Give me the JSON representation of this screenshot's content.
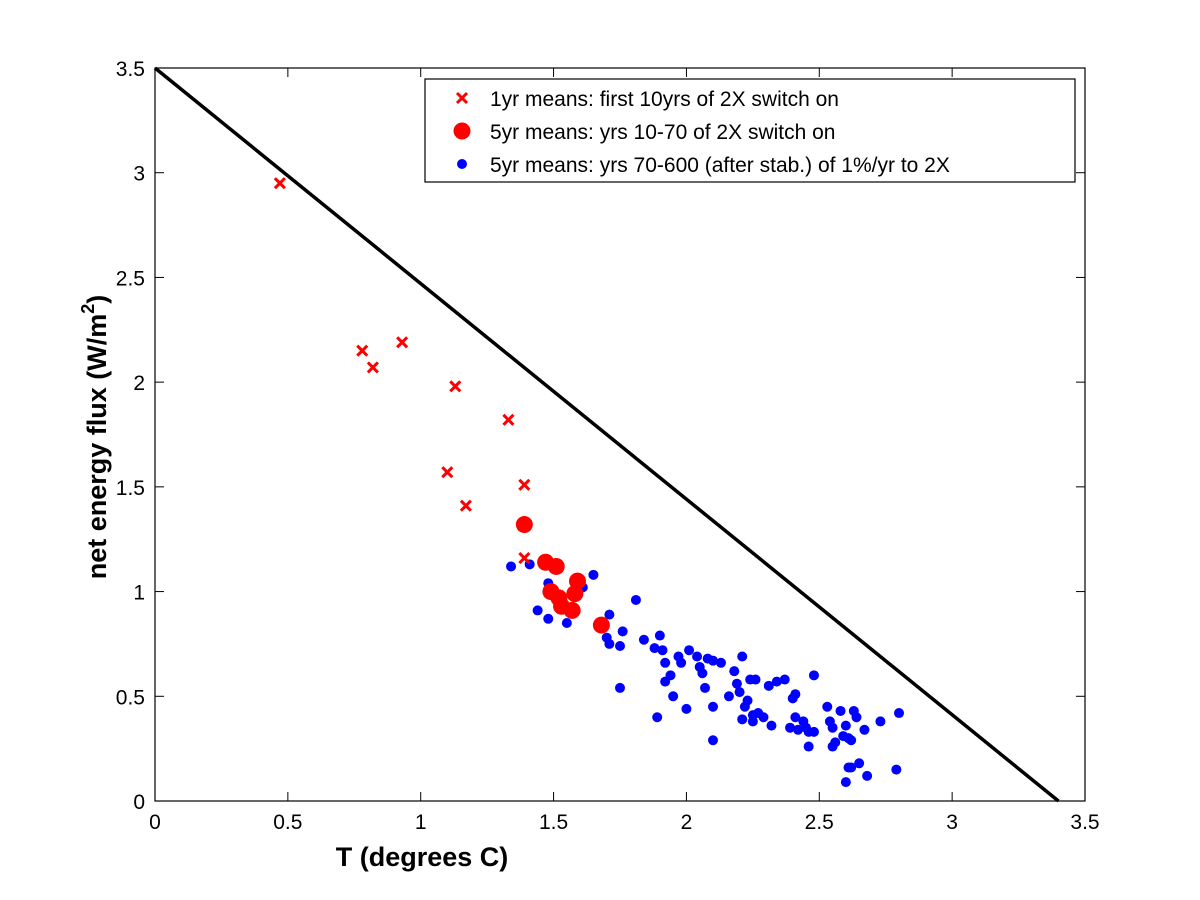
{
  "chart_data": {
    "type": "scatter",
    "title": "",
    "xlabel": "T (degrees C)",
    "ylabel_main": "net energy flux (W/m",
    "ylabel_sup": "2",
    "ylabel_close": ")",
    "xlim": [
      0,
      3.5
    ],
    "ylim": [
      0,
      3.5
    ],
    "xticks": [
      0,
      0.5,
      1,
      1.5,
      2,
      2.5,
      3,
      3.5
    ],
    "xtick_labels": [
      "0",
      "0.5",
      "1",
      "1.5",
      "2",
      "2.5",
      "3",
      "3.5"
    ],
    "yticks": [
      0,
      0.5,
      1,
      1.5,
      2,
      2.5,
      3,
      3.5
    ],
    "ytick_labels": [
      "0",
      "0.5",
      "1",
      "1.5",
      "2",
      "2.5",
      "3",
      "3.5"
    ],
    "grid": false,
    "legend_position": "top-right",
    "reference_line": {
      "x": [
        0,
        3.4
      ],
      "y": [
        3.5,
        0
      ],
      "color": "#000000"
    },
    "series": [
      {
        "name": "1yr means: first 10yrs of 2X switch on",
        "marker": "x",
        "color": "#ff0000",
        "points": [
          [
            0.47,
            2.95
          ],
          [
            0.78,
            2.15
          ],
          [
            0.82,
            2.07
          ],
          [
            0.93,
            2.19
          ],
          [
            1.13,
            1.98
          ],
          [
            1.1,
            1.57
          ],
          [
            1.17,
            1.41
          ],
          [
            1.33,
            1.82
          ],
          [
            1.39,
            1.51
          ],
          [
            1.39,
            1.16
          ]
        ]
      },
      {
        "name": "5yr means: yrs 10-70 of 2X switch on",
        "marker": "circle-large",
        "color": "#ff0000",
        "points": [
          [
            1.39,
            1.32
          ],
          [
            1.47,
            1.14
          ],
          [
            1.51,
            1.12
          ],
          [
            1.49,
            1.0
          ],
          [
            1.52,
            0.97
          ],
          [
            1.53,
            0.93
          ],
          [
            1.59,
            1.05
          ],
          [
            1.58,
            0.99
          ],
          [
            1.57,
            0.91
          ],
          [
            1.68,
            0.84
          ]
        ]
      },
      {
        "name": "5yr means: yrs 70-600 (after stab.) of 1%/yr to 2X",
        "marker": "circle-small",
        "color": "#0000ff",
        "points": [
          [
            1.34,
            1.12
          ],
          [
            1.41,
            1.13
          ],
          [
            1.48,
            1.04
          ],
          [
            1.48,
            0.99
          ],
          [
            1.44,
            0.91
          ],
          [
            1.48,
            0.87
          ],
          [
            1.53,
            0.95
          ],
          [
            1.55,
            0.85
          ],
          [
            1.56,
            0.92
          ],
          [
            1.61,
            1.02
          ],
          [
            1.65,
            1.08
          ],
          [
            1.71,
            0.89
          ],
          [
            1.7,
            0.78
          ],
          [
            1.71,
            0.75
          ],
          [
            1.75,
            0.74
          ],
          [
            1.76,
            0.81
          ],
          [
            1.75,
            0.54
          ],
          [
            1.81,
            0.96
          ],
          [
            1.84,
            0.77
          ],
          [
            1.88,
            0.73
          ],
          [
            1.9,
            0.79
          ],
          [
            1.91,
            0.72
          ],
          [
            1.92,
            0.66
          ],
          [
            1.92,
            0.57
          ],
          [
            1.94,
            0.6
          ],
          [
            1.95,
            0.5
          ],
          [
            1.89,
            0.4
          ],
          [
            1.97,
            0.69
          ],
          [
            1.98,
            0.66
          ],
          [
            2.0,
            0.44
          ],
          [
            2.01,
            0.72
          ],
          [
            2.04,
            0.69
          ],
          [
            2.05,
            0.64
          ],
          [
            2.06,
            0.61
          ],
          [
            2.08,
            0.68
          ],
          [
            2.1,
            0.67
          ],
          [
            2.1,
            0.45
          ],
          [
            2.1,
            0.29
          ],
          [
            2.13,
            0.66
          ],
          [
            2.07,
            0.54
          ],
          [
            2.16,
            0.5
          ],
          [
            2.18,
            0.62
          ],
          [
            2.19,
            0.56
          ],
          [
            2.2,
            0.52
          ],
          [
            2.21,
            0.69
          ],
          [
            2.21,
            0.39
          ],
          [
            2.23,
            0.48
          ],
          [
            2.24,
            0.58
          ],
          [
            2.25,
            0.38
          ],
          [
            2.26,
            0.58
          ],
          [
            2.27,
            0.42
          ],
          [
            2.29,
            0.4
          ],
          [
            2.31,
            0.55
          ],
          [
            2.32,
            0.36
          ],
          [
            2.34,
            0.57
          ],
          [
            2.37,
            0.58
          ],
          [
            2.4,
            0.49
          ],
          [
            2.41,
            0.51
          ],
          [
            2.41,
            0.4
          ],
          [
            2.39,
            0.35
          ],
          [
            2.42,
            0.34
          ],
          [
            2.44,
            0.38
          ],
          [
            2.45,
            0.35
          ],
          [
            2.46,
            0.26
          ],
          [
            2.46,
            0.33
          ],
          [
            2.48,
            0.6
          ],
          [
            2.48,
            0.33
          ],
          [
            2.53,
            0.45
          ],
          [
            2.54,
            0.38
          ],
          [
            2.55,
            0.35
          ],
          [
            2.55,
            0.26
          ],
          [
            2.58,
            0.43
          ],
          [
            2.59,
            0.31
          ],
          [
            2.6,
            0.36
          ],
          [
            2.61,
            0.3
          ],
          [
            2.63,
            0.43
          ],
          [
            2.64,
            0.4
          ],
          [
            2.6,
            0.09
          ],
          [
            2.61,
            0.16
          ],
          [
            2.62,
            0.16
          ],
          [
            2.65,
            0.18
          ],
          [
            2.67,
            0.34
          ],
          [
            2.68,
            0.12
          ],
          [
            2.73,
            0.38
          ],
          [
            2.79,
            0.15
          ],
          [
            2.8,
            0.42
          ],
          [
            2.62,
            0.29
          ],
          [
            2.56,
            0.28
          ],
          [
            2.25,
            0.41
          ],
          [
            2.22,
            0.45
          ]
        ]
      }
    ]
  }
}
